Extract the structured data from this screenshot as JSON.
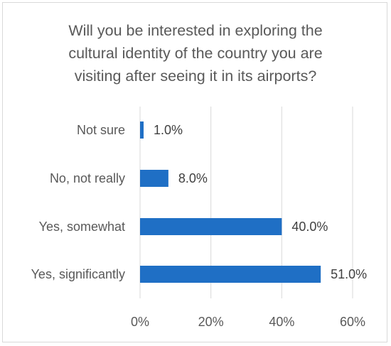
{
  "chart_data": {
    "type": "bar",
    "orientation": "horizontal",
    "title": "Will you be interested in exploring the\ncultural identity of the country you are\nvisiting after seeing it in its airports?",
    "categories": [
      "Not sure",
      "No, not really",
      "Yes, somewhat",
      "Yes, significantly"
    ],
    "values": [
      1.0,
      8.0,
      40.0,
      51.0
    ],
    "data_labels": [
      "1.0%",
      "8.0%",
      "40.0%",
      "51.0%"
    ],
    "xlim": [
      0,
      60
    ],
    "x_ticks": [
      0,
      20,
      40,
      60
    ],
    "x_tick_labels": [
      "0%",
      "20%",
      "40%",
      "60%"
    ],
    "xlabel": "",
    "ylabel": "",
    "grid": "vertical",
    "legend": "none",
    "bar_color": "#1f6fc5",
    "grid_color": "#d9d9d9"
  }
}
